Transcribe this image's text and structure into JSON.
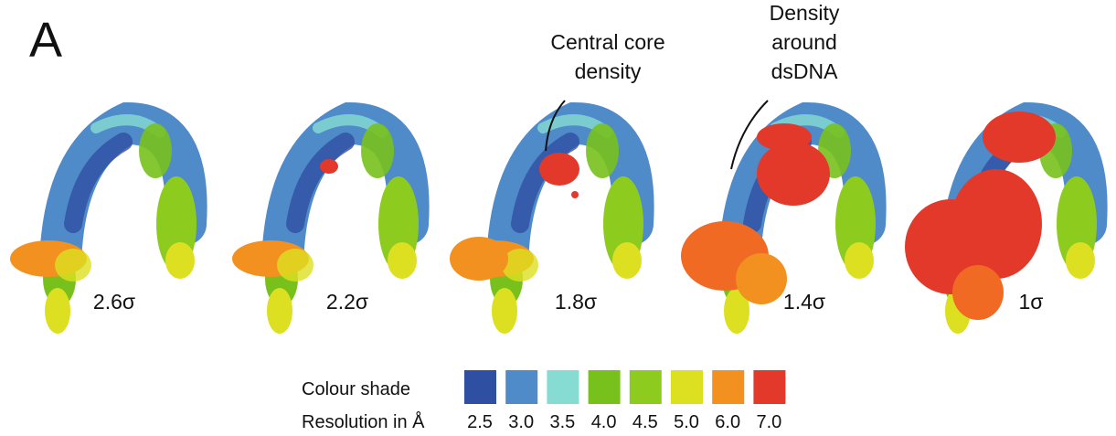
{
  "panel_label": "A",
  "annotations": [
    {
      "lines": [
        "Central core",
        "density"
      ]
    },
    {
      "lines": [
        "Density",
        "around",
        "dsDNA"
      ]
    }
  ],
  "maps": [
    {
      "label": "2.6σ"
    },
    {
      "label": "2.2σ"
    },
    {
      "label": "1.8σ"
    },
    {
      "label": "1.4σ"
    },
    {
      "label": "1σ"
    }
  ],
  "legend": {
    "shade_title": "Colour shade",
    "resolution_title": "Resolution in Å",
    "items": [
      {
        "resolution": "2.5",
        "color": "#2f4fa3"
      },
      {
        "resolution": "3.0",
        "color": "#4f8ac9"
      },
      {
        "resolution": "3.5",
        "color": "#86dcd3"
      },
      {
        "resolution": "4.0",
        "color": "#78c11d"
      },
      {
        "resolution": "4.5",
        "color": "#8dcc1e"
      },
      {
        "resolution": "5.0",
        "color": "#dde020"
      },
      {
        "resolution": "6.0",
        "color": "#f29020"
      },
      {
        "resolution": "7.0",
        "color": "#e3392b"
      }
    ]
  }
}
